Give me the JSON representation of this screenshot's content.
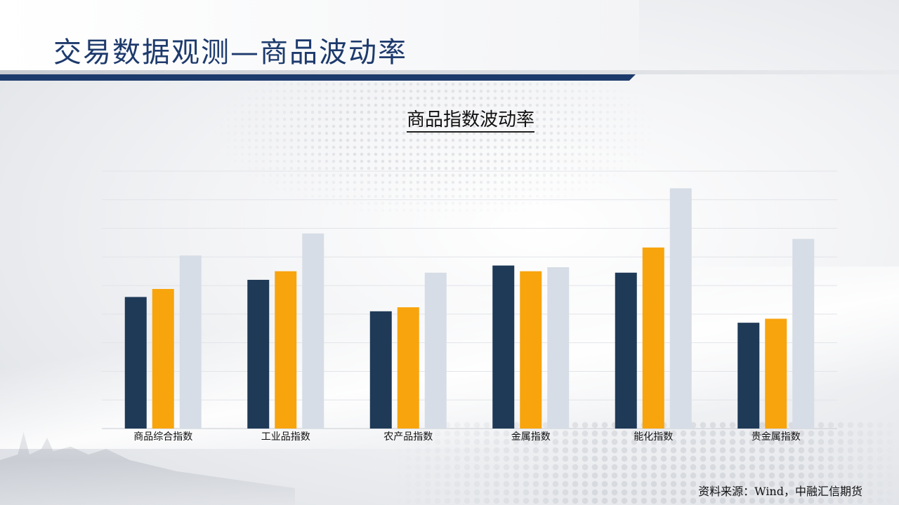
{
  "header": {
    "title": "交易数据观测—商品波动率"
  },
  "colors": {
    "brand_navy": "#1d3a6c",
    "series_1": "#1f3a57",
    "series_2": "#f8a40c",
    "series_3": "#d6dde6"
  },
  "chart_data": {
    "type": "bar",
    "title": "商品指数波动率",
    "xlabel": "",
    "ylabel": "",
    "ylim": [
      0,
      9
    ],
    "grid": true,
    "legend": "none",
    "categories": [
      "商品综合指数",
      "工业品指数",
      "农产品指数",
      "金属指数",
      "能化指数",
      "贵金属指数"
    ],
    "series": [
      {
        "color": "#1f3a57",
        "values": [
          4.6,
          5.2,
          4.1,
          5.7,
          5.45,
          3.7
        ]
      },
      {
        "color": "#f8a40c",
        "values": [
          4.88,
          5.5,
          4.24,
          5.5,
          6.33,
          3.84
        ]
      },
      {
        "color": "#d6dde6",
        "values": [
          6.05,
          6.82,
          5.45,
          5.64,
          8.4,
          6.63
        ]
      }
    ]
  },
  "footer": {
    "source": "资料来源：Wind，中融汇信期货"
  }
}
